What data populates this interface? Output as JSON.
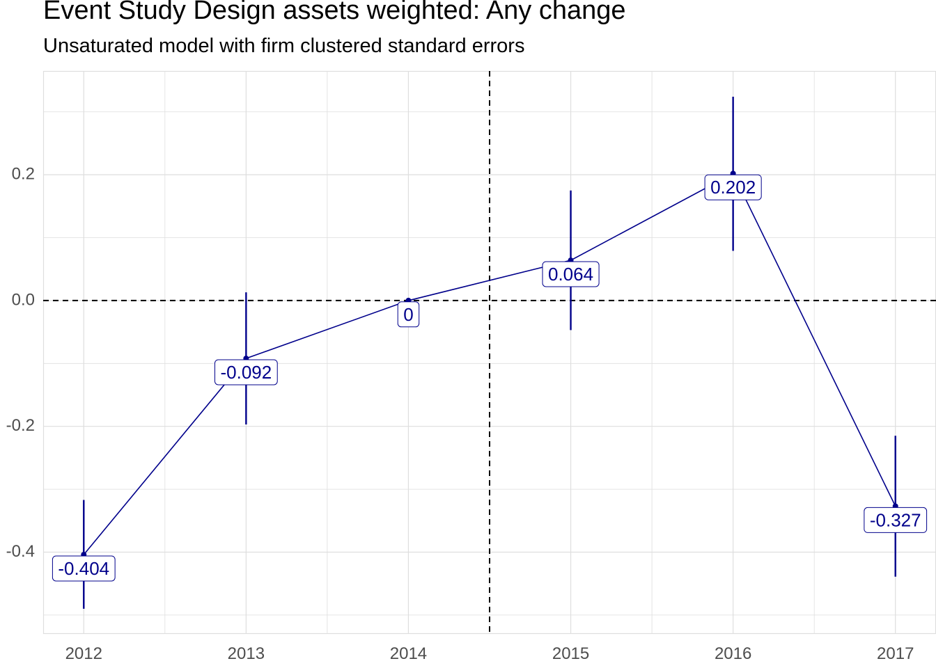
{
  "title": "Event Study Design assets weighted: Any change",
  "subtitle": "Unsaturated model with firm clustered standard errors",
  "colors": {
    "series": "#00008b",
    "grid": "#dedede",
    "axis_text": "#4d4d4d",
    "reference": "#000000"
  },
  "chart_data": {
    "type": "line",
    "x": [
      2012,
      2013,
      2014,
      2015,
      2016,
      2017
    ],
    "values": [
      -0.404,
      -0.092,
      0,
      0.064,
      0.202,
      -0.327
    ],
    "ci_lower": [
      -0.49,
      -0.197,
      0,
      -0.047,
      0.079,
      -0.439
    ],
    "ci_upper": [
      -0.317,
      0.013,
      0,
      0.175,
      0.324,
      -0.215
    ],
    "labels": [
      "-0.404",
      "-0.092",
      "0",
      "0.064",
      "0.202",
      "-0.327"
    ],
    "x_ticks": [
      "2012",
      "2013",
      "2014",
      "2015",
      "2016",
      "2017"
    ],
    "y_ticks": [
      "-0.4",
      "-0.2",
      "0.0",
      "0.2"
    ],
    "y_tick_values": [
      -0.4,
      -0.2,
      0,
      0.2
    ],
    "xlim": [
      2011.75,
      2017.25
    ],
    "ylim": [
      -0.53,
      0.365
    ],
    "reference_lines": {
      "horizontal": 0,
      "vertical": 2014.5,
      "style": "dashed"
    },
    "grid": true,
    "xlabel": "",
    "ylabel": ""
  }
}
